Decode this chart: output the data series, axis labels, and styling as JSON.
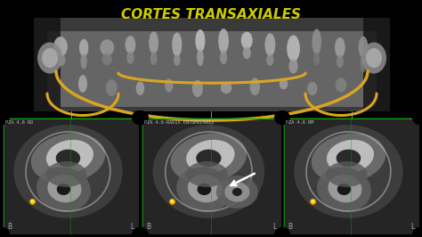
{
  "title": "CORTES TRANSAXIALES",
  "title_color": "#CCCC00",
  "title_fontsize": 11,
  "title_style": "italic",
  "title_weight": "bold",
  "background_color": "#000000",
  "panel_labels": [
    "PZA 4.6 RD",
    "PZA 4.6-RADIX ENTOMOLARIS",
    "PZA 4.6 RM"
  ],
  "dot_color": "#FFD700",
  "arch_color": "#DAA520",
  "arrow_color": "#FFFFFF",
  "green_line": "#00AA00",
  "corner_b_color": "#AAAAAA",
  "corner_l_color": "#AAAAAA",
  "ref_line_color": "#AAAAAA",
  "top_xray_bg": "#444444",
  "panel_bg": "#2a2a2a"
}
